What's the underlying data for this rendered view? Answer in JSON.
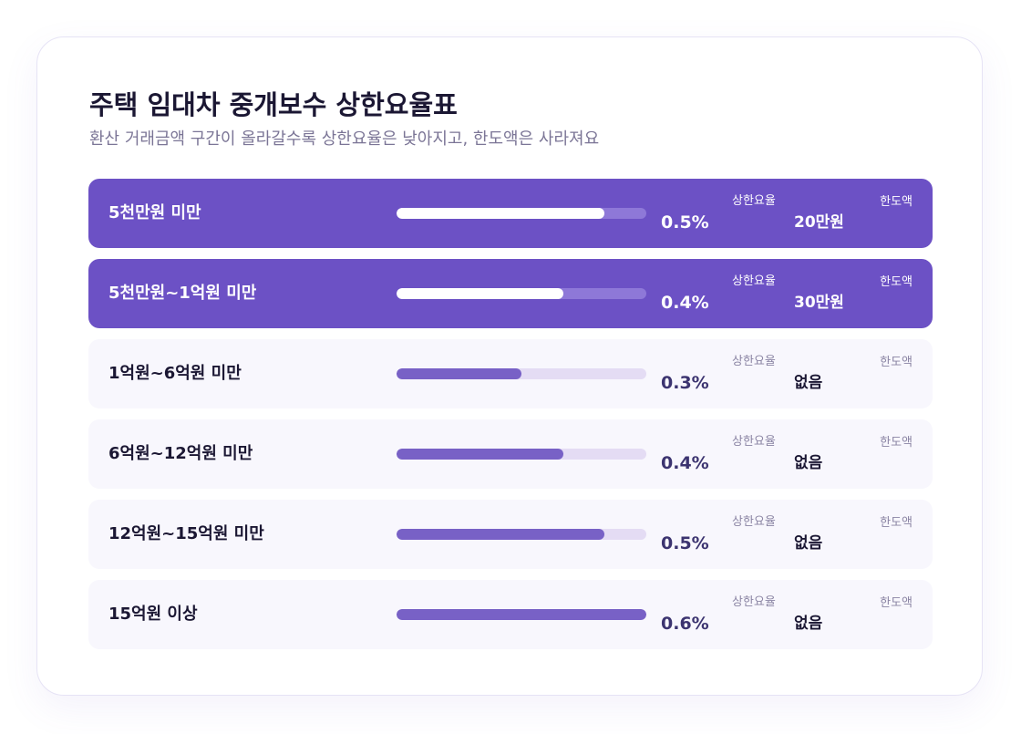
{
  "header": {
    "title": "주택 임대차 중개보수 상한요율표",
    "subtitle": "환산 거래금액 구간이 올라갈수록 상한요율은 낮아지고, 한도액은 사라져요"
  },
  "rows": [
    {
      "label": "5천만원 미만",
      "rate": "0.5%",
      "rate_level": 0.5,
      "rate_caption": "상한요율",
      "limit": "20만원",
      "limit_caption": "한도액",
      "highlighted": true
    },
    {
      "label": "5천만원~1억원 미만",
      "rate": "0.4%",
      "rate_level": 0.4,
      "rate_caption": "상한요율",
      "limit": "30만원",
      "limit_caption": "한도액",
      "highlighted": true
    },
    {
      "label": "1억원~6억원 미만",
      "rate": "0.3%",
      "rate_level": 0.3,
      "rate_caption": "상한요율",
      "limit": "없음",
      "limit_caption": "한도액",
      "highlighted": false
    },
    {
      "label": "6억원~12억원 미만",
      "rate": "0.4%",
      "rate_level": 0.4,
      "rate_caption": "상한요율",
      "limit": "없음",
      "limit_caption": "한도액",
      "highlighted": false
    },
    {
      "label": "12억원~15억원 미만",
      "rate": "0.5%",
      "rate_level": 0.5,
      "rate_caption": "상한요율",
      "limit": "없음",
      "limit_caption": "한도액",
      "highlighted": false
    },
    {
      "label": "15억원 이상",
      "rate": "0.6%",
      "rate_level": 0.6,
      "rate_caption": "상한요율",
      "limit": "없음",
      "limit_caption": "한도액",
      "highlighted": false
    }
  ],
  "scale_max_rate": 0.6,
  "colors": {
    "accent": "#6c51c5",
    "bar": "#7861c6",
    "track": "#e4dcf4"
  }
}
